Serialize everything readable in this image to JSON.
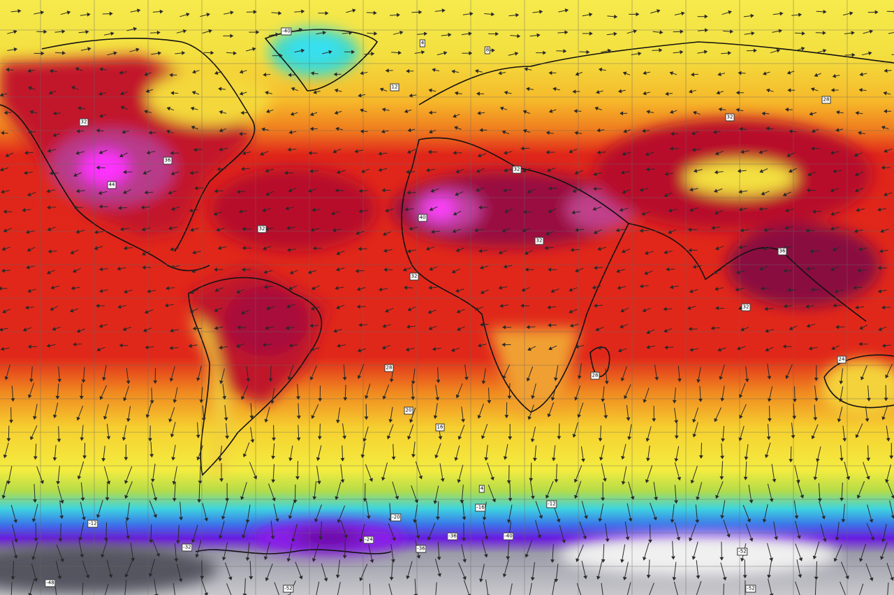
{
  "map": {
    "variable": "surface temperature with wind vectors",
    "projection": "equirectangular world",
    "graticule": true,
    "colors": {
      "arctic_yellow": "#f3e84a",
      "orange": "#f29a22",
      "red": "#e0241a",
      "dark_red": "#a8102a",
      "magenta": "#ff33ff",
      "green": "#a8d84a",
      "cyan": "#36d8e8",
      "blue": "#3a78e8",
      "purple": "#7a1ae0",
      "grey": "#c8c8c8",
      "dark_grey": "#555",
      "coastline": "#111111",
      "arrow": "#333333"
    },
    "value_labels": [
      "-40",
      "4",
      "8",
      "12",
      "32",
      "36",
      "44",
      "32",
      "40",
      "32",
      "32",
      "32",
      "28",
      "36",
      "32",
      "32",
      "28",
      "28",
      "24",
      "16",
      "20",
      "4",
      "-16",
      "-12",
      "-20",
      "-12",
      "-24",
      "-32",
      "-36",
      "-40",
      "-36",
      "-52",
      "-48",
      "-52",
      "-52"
    ]
  }
}
